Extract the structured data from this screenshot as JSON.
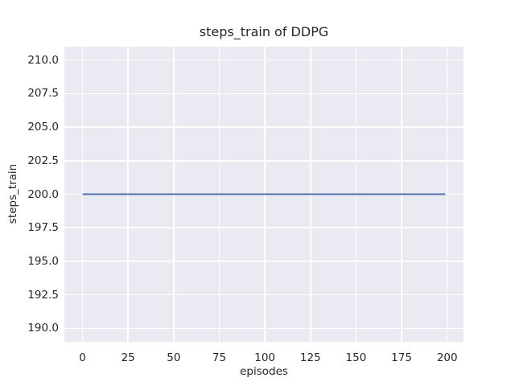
{
  "window": {
    "background": "#ffffff"
  },
  "chart_data": {
    "type": "line",
    "title": "steps_train of DDPG",
    "xlabel": "episodes",
    "ylabel": "steps_train",
    "x_tick_labels": [
      "0",
      "25",
      "50",
      "75",
      "100",
      "125",
      "150",
      "175",
      "200"
    ],
    "y_tick_labels": [
      "190.0",
      "192.5",
      "195.0",
      "197.5",
      "200.0",
      "202.5",
      "205.0",
      "207.5",
      "210.0"
    ],
    "xlim": [
      -9.95,
      208.95
    ],
    "ylim": [
      189.0,
      211.0
    ],
    "grid": true,
    "legend_position": "none",
    "plot_background": "#eaeaf2",
    "grid_color": "#ffffff",
    "text_color": "#262626",
    "series": [
      {
        "name": "steps_train",
        "color": "#4c72b0",
        "line_width": 2,
        "constant_value": 200,
        "x": [
          0,
          199
        ],
        "y": [
          200,
          200
        ]
      }
    ]
  }
}
